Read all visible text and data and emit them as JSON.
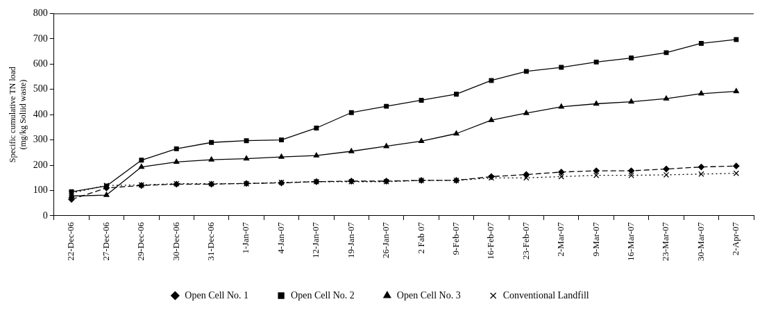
{
  "chart_data": {
    "type": "line",
    "ylabel": "Specific cumulative TN load\n(mg/kg Soliid waste)",
    "categories": [
      "22-Dec-06",
      "27-Dec-06",
      "29-Dec-06",
      "30-Dec-06",
      "31-Dec-06",
      "1-Jan-07",
      "4-Jan-07",
      "12-Jan-07",
      "19-Jan-07",
      "26-Jan-07",
      "2 Fab 07",
      "9-Feb-07",
      "16-Feb-07",
      "23-Feb-07",
      "2-Mar-07",
      "9-Mar-07",
      "16-Mar-07",
      "23-Mar-07",
      "30-Mar-07",
      "2-Apr-07"
    ],
    "series": [
      {
        "name": "Open Cell No. 1",
        "color": "#000000",
        "marker": "diamond",
        "line_style": "dashed",
        "values": [
          65,
          110,
          120,
          125,
          125,
          128,
          130,
          135,
          137,
          137,
          140,
          140,
          155,
          163,
          173,
          178,
          178,
          185,
          193,
          197
        ]
      },
      {
        "name": "Open Cell No. 2",
        "color": "#000000",
        "marker": "square",
        "line_style": "solid",
        "values": [
          95,
          118,
          220,
          265,
          290,
          297,
          300,
          347,
          408,
          433,
          457,
          481,
          535,
          571,
          587,
          608,
          624,
          645,
          682,
          697
        ]
      },
      {
        "name": "Open Cell No. 3",
        "color": "#000000",
        "marker": "triangle",
        "line_style": "solid",
        "values": [
          78,
          82,
          193,
          213,
          222,
          226,
          233,
          238,
          255,
          275,
          295,
          325,
          378,
          406,
          431,
          443,
          451,
          463,
          483,
          492
        ]
      },
      {
        "name": "Conventional Landfill",
        "color": "#000000",
        "marker": "cross",
        "line_style": "dotted",
        "values": [
          90,
          120,
          122,
          127,
          127,
          127,
          132,
          135,
          135,
          135,
          140,
          140,
          150,
          150,
          155,
          160,
          160,
          162,
          165,
          168
        ]
      }
    ],
    "ylim": [
      0,
      800
    ],
    "yticks": [
      0,
      100,
      200,
      300,
      400,
      500,
      600,
      700,
      800
    ],
    "grid": false,
    "legend": "bottom"
  }
}
